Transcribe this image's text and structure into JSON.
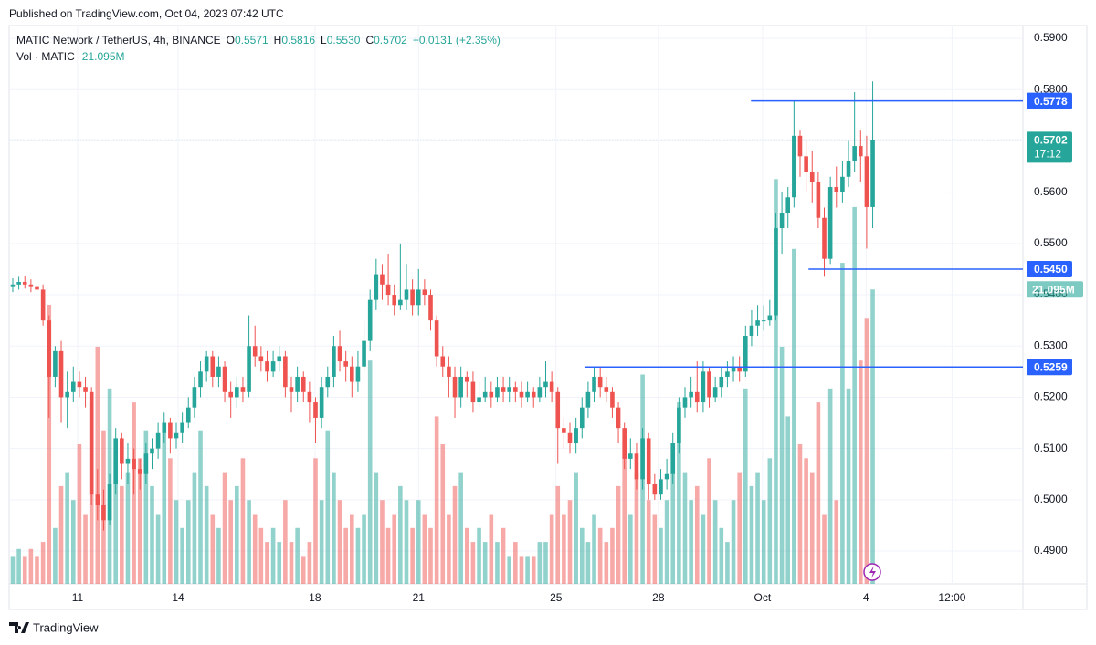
{
  "chart_data": {
    "type": "candlestick",
    "published": "Published on TradingView.com, Oct 04, 2023 07:42 UTC",
    "symbol": "MATIC Network / TetherUS, 4h, BINANCE",
    "ohlc_legend": [
      {
        "key": "O",
        "value": "0.5571"
      },
      {
        "key": "H",
        "value": "0.5816"
      },
      {
        "key": "L",
        "value": "0.5530"
      },
      {
        "key": "C",
        "value": "0.5702"
      }
    ],
    "change": "+0.0131 (+2.35%)",
    "volume_name": "Vol · MATIC",
    "volume_label": "21.095M",
    "brand": "TradingView",
    "up_color": "#26a69a",
    "down_color": "#ef5350",
    "level_color": "#2962ff",
    "open": [
      0.5415,
      0.542,
      0.5425,
      0.542,
      0.5415,
      0.541,
      0.535,
      0.524,
      0.529,
      0.52,
      0.521,
      0.523,
      0.522,
      0.521,
      0.501,
      0.499,
      0.496,
      0.503,
      0.512,
      0.507,
      0.508,
      0.506,
      0.505,
      0.509,
      0.51,
      0.513,
      0.515,
      0.512,
      0.513,
      0.515,
      0.518,
      0.522,
      0.525,
      0.528,
      0.524,
      0.526,
      0.521,
      0.52,
      0.522,
      0.521,
      0.53,
      0.528,
      0.527,
      0.525,
      0.527,
      0.528,
      0.522,
      0.521,
      0.524,
      0.521,
      0.519,
      0.516,
      0.522,
      0.524,
      0.53,
      0.527,
      0.526,
      0.523,
      0.526,
      0.531,
      0.539,
      0.544,
      0.542,
      0.54,
      0.538,
      0.539,
      0.541,
      0.538,
      0.541,
      0.54,
      0.535,
      0.528,
      0.526,
      0.524,
      0.52,
      0.524,
      0.523,
      0.519,
      0.52,
      0.521,
      0.52,
      0.522,
      0.521,
      0.522,
      0.521,
      0.52,
      0.521,
      0.52,
      0.522,
      0.523,
      0.521,
      0.514,
      0.513,
      0.511,
      0.514,
      0.518,
      0.521,
      0.524,
      0.522,
      0.521,
      0.518,
      0.514,
      0.508,
      0.509,
      0.504,
      0.512,
      0.503,
      0.501,
      0.504,
      0.505,
      0.511,
      0.518,
      0.52,
      0.521,
      0.519,
      0.525,
      0.52,
      0.522,
      0.524,
      0.525,
      0.526,
      0.525,
      0.532,
      0.534,
      0.535,
      0.535,
      0.536,
      0.553,
      0.556,
      0.559,
      0.571,
      0.567,
      0.564,
      0.562,
      0.555,
      0.547,
      0.561,
      0.56,
      0.563,
      0.566,
      0.569,
      0.567,
      0.5571
    ],
    "high": [
      0.5432,
      0.5435,
      0.5436,
      0.543,
      0.5425,
      0.542,
      0.536,
      0.53,
      0.531,
      0.525,
      0.526,
      0.525,
      0.524,
      0.522,
      0.506,
      0.502,
      0.505,
      0.514,
      0.513,
      0.511,
      0.51,
      0.508,
      0.511,
      0.512,
      0.515,
      0.517,
      0.516,
      0.515,
      0.517,
      0.52,
      0.524,
      0.527,
      0.529,
      0.529,
      0.528,
      0.527,
      0.523,
      0.524,
      0.524,
      0.536,
      0.534,
      0.53,
      0.529,
      0.529,
      0.53,
      0.529,
      0.524,
      0.526,
      0.525,
      0.523,
      0.52,
      0.524,
      0.526,
      0.532,
      0.533,
      0.529,
      0.528,
      0.529,
      0.535,
      0.541,
      0.547,
      0.546,
      0.548,
      0.542,
      0.55,
      0.546,
      0.543,
      0.545,
      0.543,
      0.541,
      0.536,
      0.53,
      0.528,
      0.526,
      0.526,
      0.525,
      0.525,
      0.523,
      0.524,
      0.523,
      0.524,
      0.524,
      0.524,
      0.523,
      0.523,
      0.523,
      0.522,
      0.524,
      0.527,
      0.525,
      0.522,
      0.516,
      0.515,
      0.516,
      0.52,
      0.523,
      0.526,
      0.526,
      0.524,
      0.522,
      0.519,
      0.515,
      0.512,
      0.511,
      0.514,
      0.513,
      0.505,
      0.506,
      0.508,
      0.513,
      0.52,
      0.522,
      0.524,
      0.527,
      0.527,
      0.526,
      0.524,
      0.526,
      0.527,
      0.528,
      0.528,
      0.534,
      0.537,
      0.538,
      0.538,
      0.539,
      0.556,
      0.56,
      0.561,
      0.5778,
      0.572,
      0.57,
      0.568,
      0.564,
      0.557,
      0.563,
      0.565,
      0.566,
      0.57,
      0.5795,
      0.572,
      0.571,
      0.5816
    ],
    "low": [
      0.5405,
      0.541,
      0.5412,
      0.5405,
      0.5398,
      0.534,
      0.516,
      0.522,
      0.515,
      0.514,
      0.519,
      0.52,
      0.518,
      0.499,
      0.496,
      0.494,
      0.495,
      0.501,
      0.504,
      0.503,
      0.501,
      0.502,
      0.503,
      0.506,
      0.508,
      0.511,
      0.509,
      0.51,
      0.511,
      0.514,
      0.516,
      0.52,
      0.523,
      0.522,
      0.522,
      0.519,
      0.516,
      0.518,
      0.519,
      0.52,
      0.526,
      0.525,
      0.523,
      0.524,
      0.525,
      0.52,
      0.517,
      0.519,
      0.519,
      0.515,
      0.511,
      0.514,
      0.52,
      0.522,
      0.525,
      0.523,
      0.52,
      0.521,
      0.525,
      0.529,
      0.537,
      0.539,
      0.538,
      0.536,
      0.537,
      0.537,
      0.536,
      0.536,
      0.538,
      0.533,
      0.526,
      0.524,
      0.52,
      0.516,
      0.518,
      0.52,
      0.517,
      0.518,
      0.519,
      0.518,
      0.519,
      0.519,
      0.519,
      0.519,
      0.518,
      0.519,
      0.518,
      0.519,
      0.52,
      0.519,
      0.507,
      0.51,
      0.509,
      0.509,
      0.512,
      0.516,
      0.519,
      0.52,
      0.519,
      0.516,
      0.511,
      0.506,
      0.506,
      0.502,
      0.502,
      0.5,
      0.5,
      0.5,
      0.502,
      0.503,
      0.509,
      0.516,
      0.518,
      0.517,
      0.517,
      0.518,
      0.519,
      0.52,
      0.522,
      0.523,
      0.523,
      0.524,
      0.53,
      0.532,
      0.533,
      0.534,
      0.535,
      0.548,
      0.553,
      0.557,
      0.563,
      0.56,
      0.558,
      0.553,
      0.5435,
      0.546,
      0.557,
      0.558,
      0.561,
      0.564,
      0.562,
      0.549,
      0.553
    ],
    "close": [
      0.542,
      0.5425,
      0.542,
      0.5415,
      0.541,
      0.535,
      0.524,
      0.529,
      0.52,
      0.521,
      0.523,
      0.522,
      0.521,
      0.501,
      0.499,
      0.496,
      0.503,
      0.512,
      0.507,
      0.508,
      0.506,
      0.505,
      0.509,
      0.51,
      0.513,
      0.515,
      0.512,
      0.513,
      0.515,
      0.518,
      0.522,
      0.525,
      0.528,
      0.524,
      0.526,
      0.521,
      0.52,
      0.522,
      0.521,
      0.53,
      0.528,
      0.527,
      0.525,
      0.527,
      0.528,
      0.522,
      0.521,
      0.524,
      0.521,
      0.519,
      0.516,
      0.522,
      0.524,
      0.53,
      0.527,
      0.526,
      0.523,
      0.526,
      0.531,
      0.539,
      0.544,
      0.542,
      0.54,
      0.538,
      0.539,
      0.541,
      0.538,
      0.541,
      0.54,
      0.535,
      0.528,
      0.526,
      0.524,
      0.52,
      0.524,
      0.523,
      0.519,
      0.52,
      0.521,
      0.52,
      0.522,
      0.521,
      0.522,
      0.521,
      0.52,
      0.521,
      0.52,
      0.522,
      0.523,
      0.521,
      0.514,
      0.513,
      0.511,
      0.514,
      0.518,
      0.521,
      0.524,
      0.522,
      0.521,
      0.518,
      0.514,
      0.508,
      0.509,
      0.504,
      0.512,
      0.503,
      0.501,
      0.504,
      0.505,
      0.511,
      0.518,
      0.52,
      0.521,
      0.519,
      0.525,
      0.52,
      0.522,
      0.524,
      0.525,
      0.526,
      0.525,
      0.532,
      0.534,
      0.535,
      0.535,
      0.536,
      0.553,
      0.556,
      0.559,
      0.571,
      0.567,
      0.564,
      0.562,
      0.555,
      0.547,
      0.561,
      0.56,
      0.563,
      0.566,
      0.569,
      0.567,
      0.5571,
      0.5702
    ],
    "volume": [
      2,
      2.5,
      2,
      2.5,
      2,
      3,
      20,
      4,
      7,
      8,
      6,
      10,
      5,
      13,
      17,
      11,
      14,
      9,
      7,
      8,
      13,
      9,
      11,
      7,
      5,
      11,
      9,
      6,
      4,
      6,
      8,
      11,
      7,
      5,
      4,
      8,
      6,
      7,
      9,
      6,
      5,
      4,
      3,
      4,
      3,
      6,
      3,
      4,
      2,
      3,
      9,
      6,
      11,
      8,
      6,
      4,
      5,
      4,
      5,
      16,
      8,
      6,
      4,
      5,
      7,
      6,
      4,
      6,
      5,
      4,
      12,
      10,
      5,
      7,
      8,
      4,
      3,
      4,
      3,
      5,
      3,
      4,
      2,
      3,
      2,
      2,
      2,
      3,
      3,
      5,
      7,
      5,
      6,
      8,
      4,
      3,
      5,
      4,
      3,
      4,
      7,
      9,
      5,
      8,
      15,
      6,
      5,
      4,
      6,
      10,
      13,
      8,
      6,
      7,
      5,
      9,
      6,
      4,
      3,
      6,
      8,
      14,
      7,
      8,
      6,
      9,
      29,
      17,
      12,
      24,
      10,
      9,
      8,
      13,
      5,
      14,
      6,
      23,
      14,
      27,
      16,
      19,
      21.095
    ],
    "vlim": [
      0,
      40
    ],
    "ylim": [
      0.4836,
      0.5925
    ],
    "yticks": [
      {
        "value": 0.49,
        "label": "0.4900"
      },
      {
        "value": 0.5,
        "label": "0.5000"
      },
      {
        "value": 0.51,
        "label": "0.5100"
      },
      {
        "value": 0.52,
        "label": "0.5200"
      },
      {
        "value": 0.53,
        "label": "0.5300"
      },
      {
        "value": 0.54,
        "label": "0.5400"
      },
      {
        "value": 0.55,
        "label": "0.5500"
      },
      {
        "value": 0.56,
        "label": "0.5600"
      },
      {
        "value": 0.57,
        "label": "0.5700"
      },
      {
        "value": 0.58,
        "label": "0.5800"
      },
      {
        "value": 0.59,
        "label": "0.5900"
      }
    ],
    "xlim": [
      -0.6,
      166.8
    ],
    "xticks": [
      {
        "value": 10.7,
        "label": "11"
      },
      {
        "value": 27.3,
        "label": "14"
      },
      {
        "value": 49.9,
        "label": "18"
      },
      {
        "value": 67,
        "label": "21"
      },
      {
        "value": 89.7,
        "label": "25"
      },
      {
        "value": 106.6,
        "label": "28"
      },
      {
        "value": 123.8,
        "label": "Oct"
      },
      {
        "value": 140.9,
        "label": "4"
      },
      {
        "value": 155.1,
        "label": "12:00"
      }
    ],
    "grid": true,
    "levels": [
      {
        "value": 0.5778,
        "label": "0.5778",
        "x_start": 121.9
      },
      {
        "value": 0.545,
        "label": "0.5450",
        "x_start": 131.4
      },
      {
        "value": 0.5259,
        "label": "0.5259",
        "x_start": 94.4
      }
    ],
    "last_price": {
      "value": 0.5702,
      "label": "0.5702",
      "countdown": "17:12"
    }
  }
}
